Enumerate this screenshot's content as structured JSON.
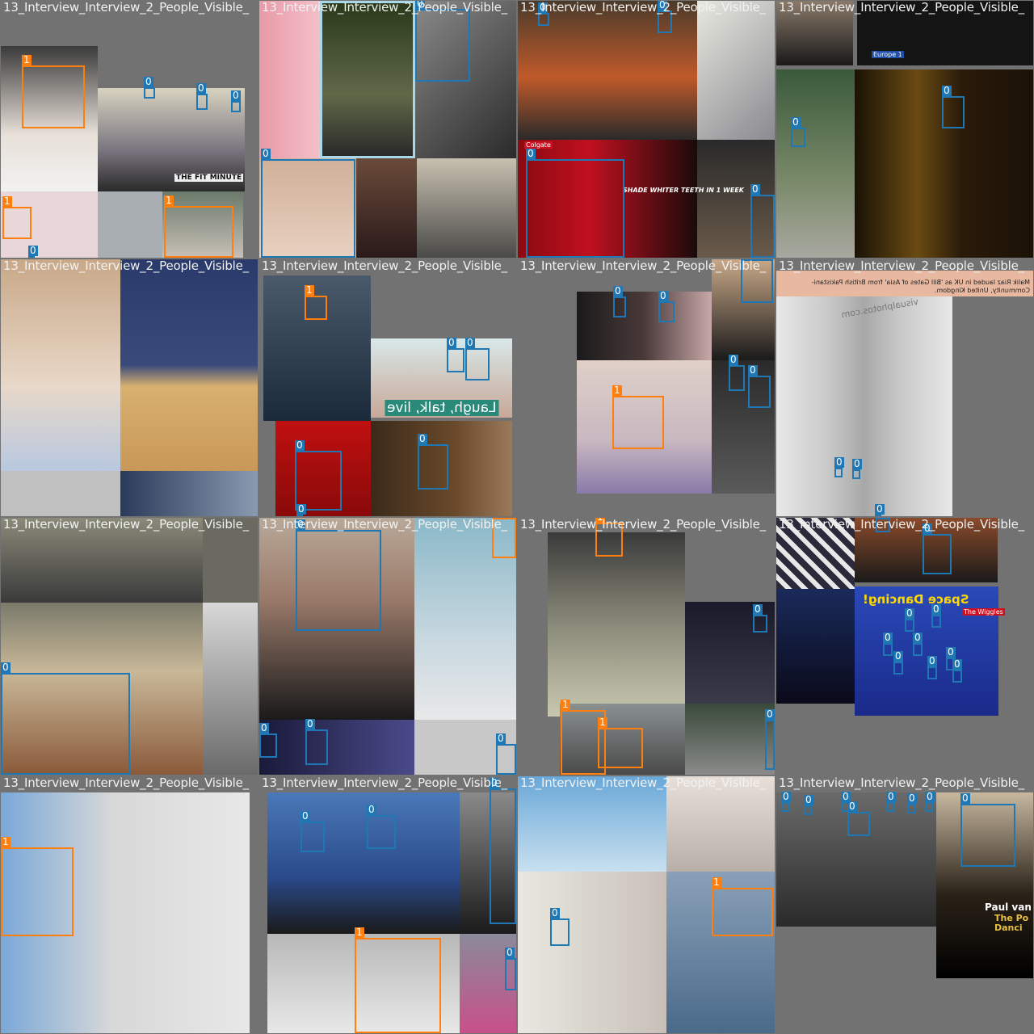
{
  "colors": {
    "background": "#727272",
    "class_0": "#1f77b4",
    "class_1": "#ff7f0e",
    "title_text": "#f2f2f2"
  },
  "tiles": [
    {
      "title": "13_Interview_Interview_2_People_Visible_"
    },
    {
      "title": "13_Interview_Interview_2_People_Visible_"
    },
    {
      "title": "13_Interview_Interview_2_People_Visible_"
    },
    {
      "title": "13_Interview_Interview_2_People_Visible_"
    },
    {
      "title": "13_Interview_Interview_2_People_Visible_"
    },
    {
      "title": "13_Interview_Interview_2_People_Visible_"
    },
    {
      "title": "13_Interview_Interview_2_People_Visible_"
    },
    {
      "title": "13_Interview_Interview_2_People_Visible_"
    },
    {
      "title": "13_Interview_Interview_2_People_Visible_"
    },
    {
      "title": "13_Interview_Interview_2_People_Visible_"
    },
    {
      "title": "13_Interview_Interview_2_People_Visible_"
    },
    {
      "title": "13_Interview_Interview_2_People_Visible_"
    },
    {
      "title": "13_Interview_Interview_2_People_Visible_"
    },
    {
      "title": "13_Interview_Interview_2_People_Visible_"
    },
    {
      "title": "13_Interview_Interview_2_People_Visible_"
    },
    {
      "title": "13_Interview_Interview_2_People_Visible_"
    }
  ],
  "labels": {
    "class_0": "0",
    "class_1": "1"
  },
  "image_text": {
    "fit_minute": "THE FIT MINUTE",
    "colgate": "Colgate",
    "colgate_ad": "SHADE WHITER TEETH IN 1 WEEK",
    "europe": "Europe 1",
    "visualphotos": "visualphotos.com",
    "laugh_talk_live": "Laugh, talk, live",
    "malik_news": "Malik Riaz lauded in UK as 'Bill Gates of Asia' from British Pakistani-Community, United Kingdom.",
    "space_dancing": "Space Dancing!",
    "wiggles": "The Wiggles",
    "paul": "Paul van Dy",
    "paul_sub": "The Po Danci"
  }
}
